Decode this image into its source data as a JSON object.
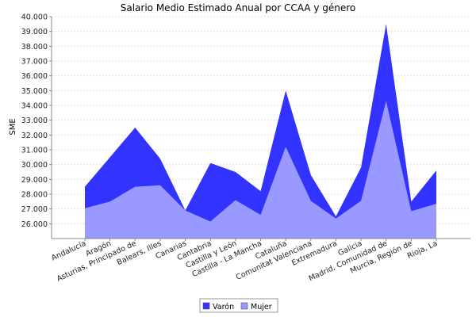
{
  "chart_data": {
    "type": "area",
    "title": "Salario Medio Estimado Anual por CCAA y género",
    "xlabel": "",
    "ylabel": "SME",
    "categories": [
      "Andalucía",
      "Aragón",
      "Asturias, Principado de",
      "Balears, Illes",
      "Canarias",
      "Cantabria",
      "Castilla y León",
      "Castilla - La Mancha",
      "Cataluña",
      "Comunitat Valenciana",
      "Extremadura",
      "Galicia",
      "Madrid, Comunidad de",
      "Murcia, Región de",
      "Rioja, La"
    ],
    "series": [
      {
        "name": "Varón",
        "color": "#3333ff",
        "values": [
          28500,
          30500,
          32500,
          30400,
          26900,
          30100,
          29500,
          28200,
          35000,
          29300,
          26500,
          29800,
          39500,
          27500,
          29600
        ]
      },
      {
        "name": "Mujer",
        "color": "#9999ff",
        "values": [
          27050,
          27500,
          28500,
          28600,
          26900,
          26150,
          27600,
          26600,
          31200,
          27550,
          26350,
          27550,
          34300,
          26850,
          27350
        ]
      }
    ],
    "ylim": [
      25000,
      40000
    ],
    "yticks": [
      "26.000",
      "27.000",
      "28.000",
      "29.000",
      "30.000",
      "31.000",
      "32.000",
      "33.000",
      "34.000",
      "35.000",
      "36.000",
      "37.000",
      "38.000",
      "39.000",
      "40.000"
    ],
    "ytick_values": [
      26000,
      27000,
      28000,
      29000,
      30000,
      31000,
      32000,
      33000,
      34000,
      35000,
      36000,
      37000,
      38000,
      39000,
      40000
    ],
    "grid": true,
    "legend": "bottom-center"
  }
}
